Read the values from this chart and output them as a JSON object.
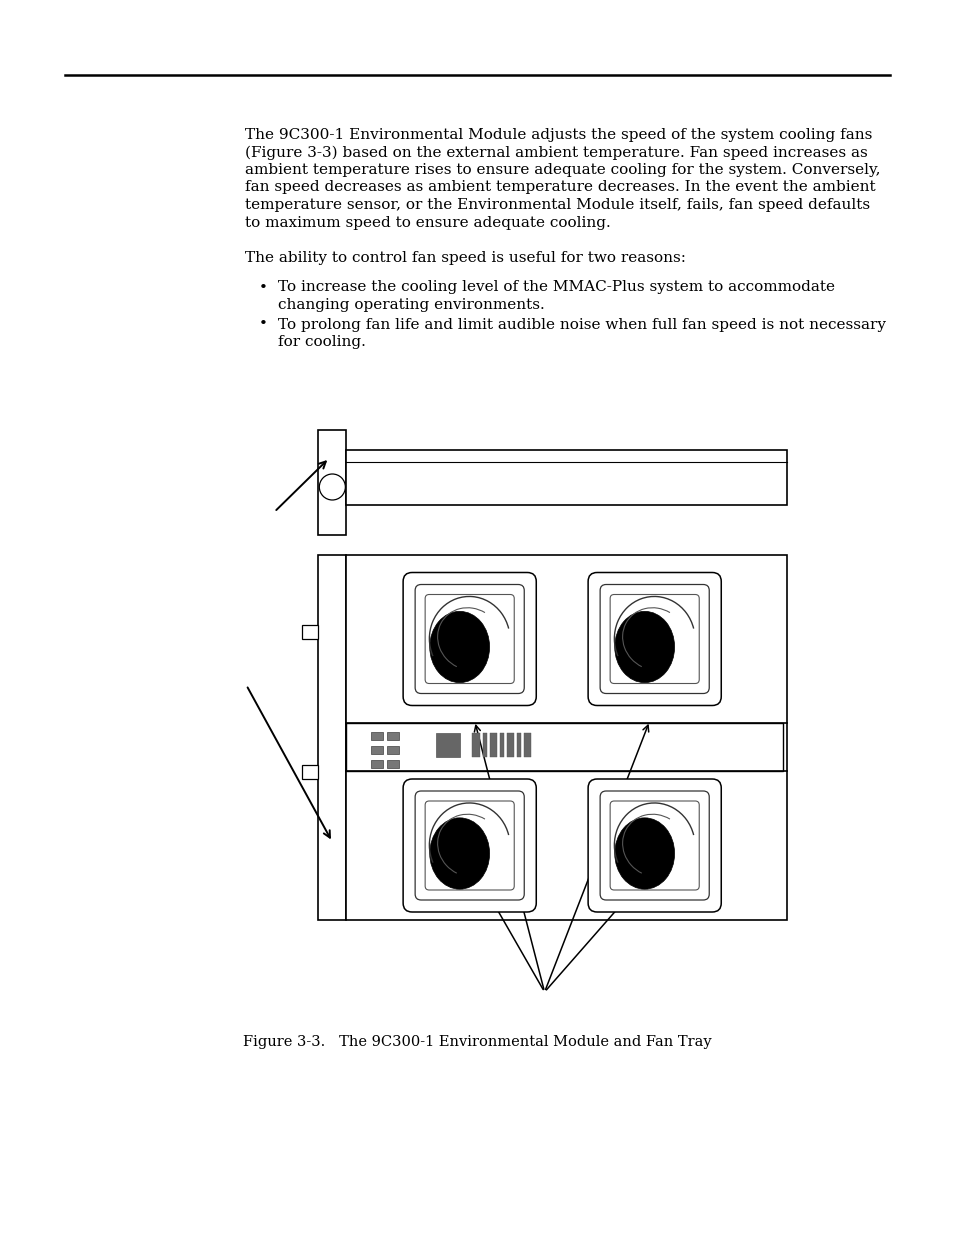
{
  "bg_color": "#ffffff",
  "paragraph1_lines": [
    "The 9C300-1 Environmental Module adjusts the speed of the system cooling fans",
    "(Figure 3-3) based on the external ambient temperature. Fan speed increases as",
    "ambient temperature rises to ensure adequate cooling for the system. Conversely,",
    "fan speed decreases as ambient temperature decreases. In the event the ambient",
    "temperature sensor, or the Environmental Module itself, fails, fan speed defaults",
    "to maximum speed to ensure adequate cooling."
  ],
  "paragraph2": "The ability to control fan speed is useful for two reasons:",
  "bullet1a": "To increase the cooling level of the MMAC-Plus system to accommodate",
  "bullet1b": "changing operating environments.",
  "bullet2a": "To prolong fan life and limit audible noise when full fan speed is not necessary",
  "bullet2b": "for cooling.",
  "figure_caption": "Figure 3-3.   The 9C300-1 Environmental Module and Fan Tray",
  "font_size_body": 11.0,
  "font_size_caption": 10.5,
  "line_color": "#000000",
  "gray_dark": "#555555",
  "gray_mid": "#777777"
}
